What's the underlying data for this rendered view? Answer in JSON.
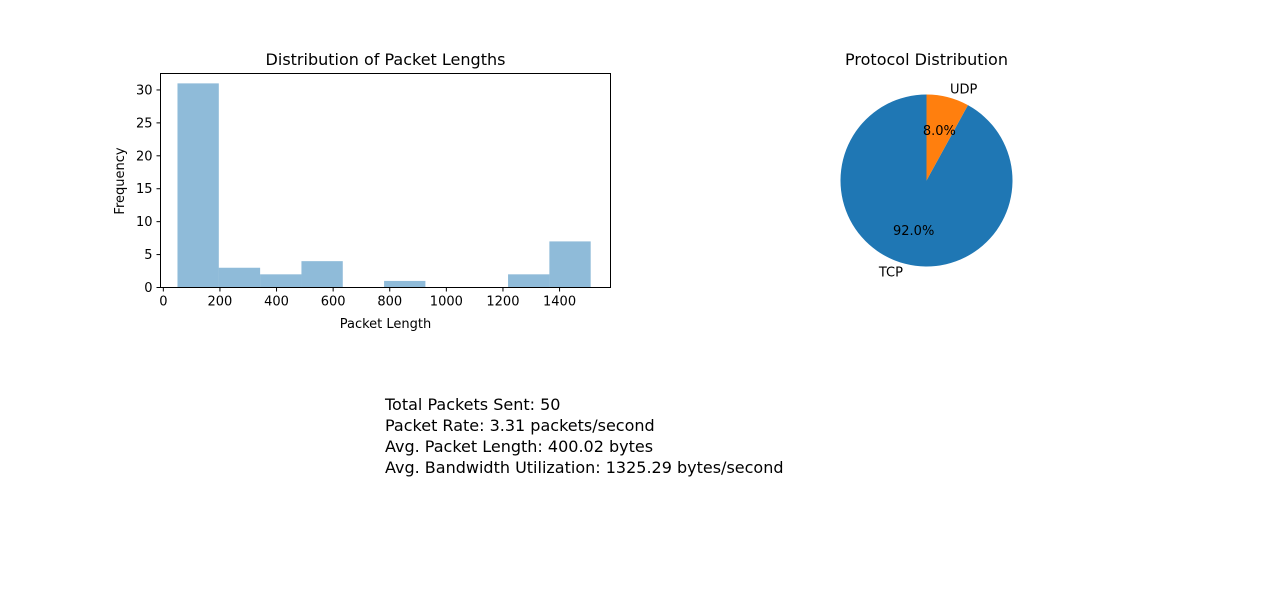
{
  "chart_data": [
    {
      "type": "bar",
      "subtype": "histogram",
      "title": "Distribution of Packet Lengths",
      "xlabel": "Packet Length",
      "ylabel": "Frequency",
      "xlim": [
        -10,
        1580
      ],
      "ylim": [
        0,
        32.5
      ],
      "xticks": [
        0,
        200,
        400,
        600,
        800,
        1000,
        1200,
        1400
      ],
      "yticks": [
        0,
        5,
        10,
        15,
        20,
        25,
        30
      ],
      "bin_edges": [
        50,
        196,
        342,
        488,
        634,
        780,
        926,
        1072,
        1218,
        1364,
        1510
      ],
      "values": [
        31,
        3,
        2,
        4,
        0,
        1,
        0,
        0,
        2,
        7
      ],
      "color": "#1f77b4",
      "alpha": 0.5,
      "grid": false
    },
    {
      "type": "pie",
      "title": "Protocol Distribution",
      "labels": [
        "TCP",
        "UDP"
      ],
      "values": [
        92.0,
        8.0
      ],
      "autopct": [
        "92.0%",
        "8.0%"
      ],
      "colors": [
        "#1f77b4",
        "#ff7f0e"
      ],
      "start_angle": 90
    }
  ],
  "stats": {
    "total_packets": "Total Packets Sent: 50",
    "packet_rate": "Packet Rate: 3.31 packets/second",
    "avg_length": "Avg. Packet Length: 400.02 bytes",
    "avg_bandwidth": "Avg. Bandwidth Utilization: 1325.29 bytes/second"
  }
}
